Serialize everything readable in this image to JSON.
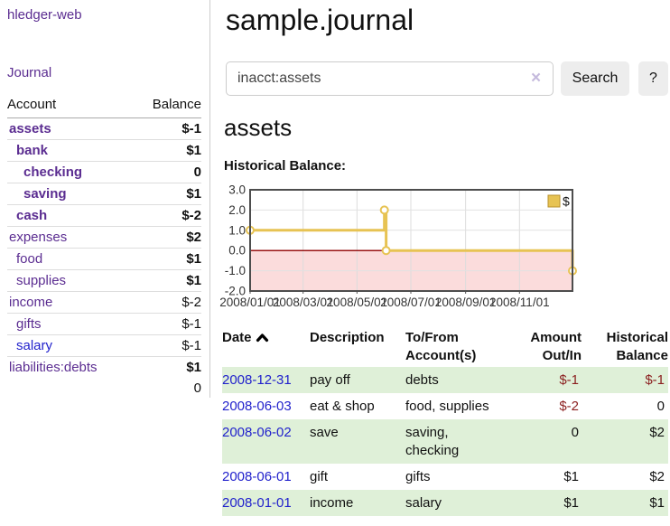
{
  "colors": {
    "link_purple": "#5b2d91",
    "link_blue": "#2222cc",
    "negative_strong": "#8b1f1f",
    "negative_muted": "#b26d6d",
    "row_stripe_green": "#dff0d8",
    "chart_line_gold": "#e7c353",
    "chart_negative_fill": "#fbdcdc",
    "chart_zero_line": "#991414"
  },
  "sidebar": {
    "brand": "hledger-web",
    "nav": {
      "journal": "Journal"
    },
    "table_headers": {
      "account": "Account",
      "balance": "Balance"
    },
    "accounts": [
      {
        "account": "assets",
        "balance": "$-1",
        "indent": 0,
        "bold": true,
        "neg": "strong"
      },
      {
        "account": "bank",
        "balance": "$1",
        "indent": 1,
        "bold": true
      },
      {
        "account": "checking",
        "balance": "0",
        "indent": 2,
        "bold": true
      },
      {
        "account": "saving",
        "balance": "$1",
        "indent": 2,
        "bold": true
      },
      {
        "account": "cash",
        "balance": "$-2",
        "indent": 1,
        "bold": true,
        "neg": "strong"
      },
      {
        "account": "expenses",
        "balance": "$2",
        "indent": 0
      },
      {
        "account": "food",
        "balance": "$1",
        "indent": 1
      },
      {
        "account": "supplies",
        "balance": "$1",
        "indent": 1
      },
      {
        "account": "income",
        "balance": "$-2",
        "indent": 0,
        "neg": "muted"
      },
      {
        "account": "gifts",
        "balance": "$-1",
        "indent": 1,
        "neg": "muted"
      },
      {
        "account": "salary",
        "balance": "$-1",
        "indent": 1,
        "neg": "muted",
        "color": "blue"
      },
      {
        "account": "liabilities:debts",
        "balance": "$1",
        "indent": 0
      }
    ],
    "total": "0"
  },
  "main": {
    "title": "sample.journal",
    "search": {
      "value": "inacct:assets",
      "clear_icon": "×",
      "button": "Search",
      "help_button": "?"
    },
    "account_heading": "assets",
    "chart_label": "Historical Balance:"
  },
  "chart_data": {
    "type": "line",
    "step": true,
    "title": "Historical Balance",
    "series": [
      {
        "name": "$",
        "points": [
          [
            "2008-01-01",
            1
          ],
          [
            "2008-06-01",
            2
          ],
          [
            "2008-06-03",
            0
          ],
          [
            "2008-12-31",
            -1
          ]
        ]
      }
    ],
    "x_range": [
      "2008-01-01",
      "2008-12-31"
    ],
    "x_ticks": [
      "2008/01/01",
      "2008/03/01",
      "2008/05/01",
      "2008/07/01",
      "2008/09/01",
      "2008/11/01"
    ],
    "y_ticks": [
      3.0,
      2.0,
      1.0,
      0.0,
      -1.0,
      -2.0
    ],
    "ylim": [
      -2,
      3
    ],
    "grid": true,
    "legend": {
      "label": "$",
      "position": "top-right"
    }
  },
  "register": {
    "headers": {
      "date": "Date",
      "description": "Description",
      "accounts": "To/From\nAccount(s)",
      "amount": "Amount\nOut/In",
      "balance": "Historical\nBalance"
    },
    "rows": [
      {
        "date": "2008-12-31",
        "description": "pay off",
        "accounts": "debts",
        "amount": "$-1",
        "balance": "$-1",
        "amount_neg": true,
        "balance_neg": true
      },
      {
        "date": "2008-06-03",
        "description": "eat & shop",
        "accounts": "food, supplies",
        "amount": "$-2",
        "balance": "0",
        "amount_neg": true
      },
      {
        "date": "2008-06-02",
        "description": "save",
        "accounts": "saving, checking",
        "amount": "0",
        "balance": "$2"
      },
      {
        "date": "2008-06-01",
        "description": "gift",
        "accounts": "gifts",
        "amount": "$1",
        "balance": "$2"
      },
      {
        "date": "2008-01-01",
        "description": "income",
        "accounts": "salary",
        "amount": "$1",
        "balance": "$1"
      }
    ]
  }
}
